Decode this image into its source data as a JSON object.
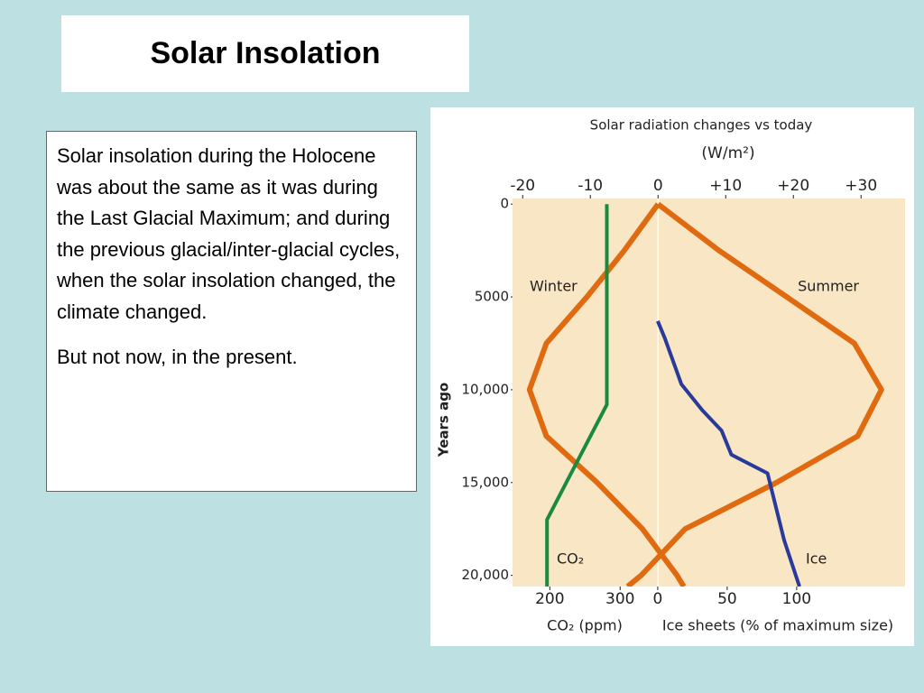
{
  "title": "Solar Insolation",
  "text_box": {
    "paragraphs": [
      "Solar insolation during the Holocene was about the same as it was during the Last Glacial Maximum; and during the previous glacial/inter-glacial cycles, when the solar insolation changed, the climate changed.",
      "But not now, in the present."
    ]
  },
  "chart_data": {
    "type": "line",
    "title": "Solar radiation changes vs today",
    "subtitle": "(W/m²)",
    "y_label": "Years ago",
    "ylim": [
      -300,
      20600
    ],
    "y_reversed": true,
    "yticks": [
      0,
      5000,
      {
        "value": 10000,
        "label": "10,000"
      },
      {
        "value": 15000,
        "label": "15,000"
      },
      {
        "value": 20000,
        "label": "20,000"
      }
    ],
    "axes": {
      "radiation": {
        "position": "top",
        "lim": [
          -21.5,
          36.5
        ],
        "ticks": [
          -20,
          -10,
          0,
          {
            "value": 10,
            "label": "+10"
          },
          {
            "value": 20,
            "label": "+20"
          },
          {
            "value": 30,
            "label": "+30"
          }
        ]
      },
      "co2": {
        "position": "bottom",
        "label": "CO₂ (ppm)",
        "lim": [
          147,
          705
        ],
        "ticks": [
          200,
          300
        ]
      },
      "ice": {
        "position": "bottom",
        "label": "Ice sheets (% of maximum size)",
        "lim": [
          -104.5,
          178
        ],
        "ticks": [
          0,
          50,
          100
        ]
      }
    },
    "series": [
      {
        "name": "Winter",
        "axis": "radiation",
        "color": "#e06a10",
        "years": [
          0,
          2500,
          5000,
          7500,
          10000,
          12500,
          15000,
          17500,
          20000,
          20600
        ],
        "values": [
          0,
          -5,
          -10.5,
          -16.5,
          -19,
          -16.5,
          -9,
          -2.3,
          2.8,
          3.8
        ]
      },
      {
        "name": "Summer",
        "axis": "radiation",
        "color": "#e06a10",
        "years": [
          0,
          2500,
          5000,
          7500,
          10000,
          12500,
          15000,
          17500,
          20000,
          20600
        ],
        "values": [
          0,
          9,
          19,
          29,
          33,
          29.5,
          17.5,
          4,
          -2.5,
          -4.5
        ]
      },
      {
        "name": "CO₂",
        "axis": "co2",
        "color": "#1a8a40",
        "years": [
          0,
          10800,
          17000,
          20600
        ],
        "values": [
          281,
          281,
          196,
          196
        ]
      },
      {
        "name": "Ice",
        "axis": "ice",
        "color": "#2a3a9a",
        "years": [
          6300,
          7200,
          9700,
          11100,
          12200,
          13500,
          14500,
          18100,
          20600
        ],
        "values": [
          0,
          5,
          17,
          32,
          46,
          53,
          79,
          91,
          102
        ]
      }
    ]
  }
}
